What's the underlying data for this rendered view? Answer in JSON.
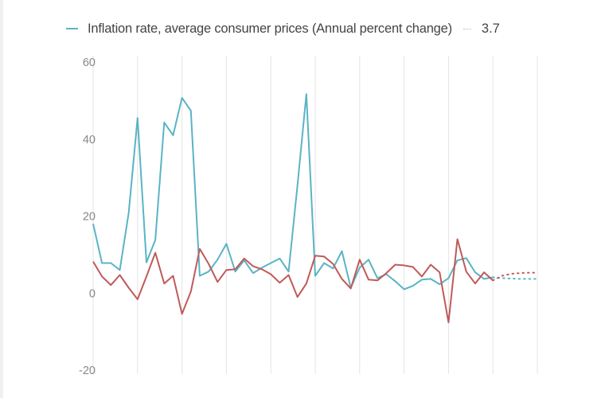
{
  "legend": {
    "label": "Inflation rate, average consumer prices (Annual percent change)",
    "value": "3.7"
  },
  "colors": {
    "inflation": "#5ab4c4",
    "second_series": "#c05a5a",
    "grid": "#e4e4e4"
  },
  "chart_data": {
    "type": "line",
    "ylim": [
      -20,
      60
    ],
    "yticks": [
      "60",
      "40",
      "20",
      "0",
      "-20"
    ],
    "ytick_values": [
      60,
      40,
      20,
      0,
      -20
    ],
    "grid": "vertical",
    "legend_position": "top",
    "projection_start_index": 45,
    "series": [
      {
        "name": "Inflation rate, average consumer prices (Annual percent change)",
        "color": "#5ab4c4",
        "values": [
          18,
          7.8,
          7.8,
          6,
          20.8,
          45.5,
          8,
          13.8,
          44.3,
          41,
          50.7,
          47.4,
          4.5,
          5.6,
          8.7,
          12.8,
          5.6,
          8.5,
          5.2,
          6.6,
          7.8,
          9,
          5.6,
          28,
          51.7,
          4.5,
          7.8,
          6.4,
          10.9,
          1.4,
          6.6,
          8.7,
          3.9,
          4.9,
          3.1,
          1.0,
          1.9,
          3.5,
          3.7,
          2.3,
          3.9,
          8.5,
          9.1,
          5.4,
          3.7,
          4.1,
          3.9,
          3.8,
          3.7,
          3.7,
          3.7
        ]
      },
      {
        "color": "#c05a5a",
        "values": [
          8.2,
          4.3,
          2.1,
          4.7,
          1.4,
          -1.6,
          4.3,
          10.5,
          2.5,
          4.5,
          -5.4,
          0.4,
          11.5,
          7.6,
          2.9,
          6,
          6.2,
          9,
          7,
          6.2,
          4.9,
          2.7,
          4.7,
          -1.0,
          2.5,
          9.7,
          9.5,
          7.6,
          3.7,
          1.2,
          8.7,
          3.5,
          3.3,
          5.2,
          7.4,
          7.2,
          6.8,
          4.3,
          7.4,
          5.4,
          -7.6,
          14,
          5.6,
          2.5,
          5.4,
          3.3,
          4.5,
          5.0,
          5.2,
          5.3,
          5.3
        ]
      }
    ]
  }
}
